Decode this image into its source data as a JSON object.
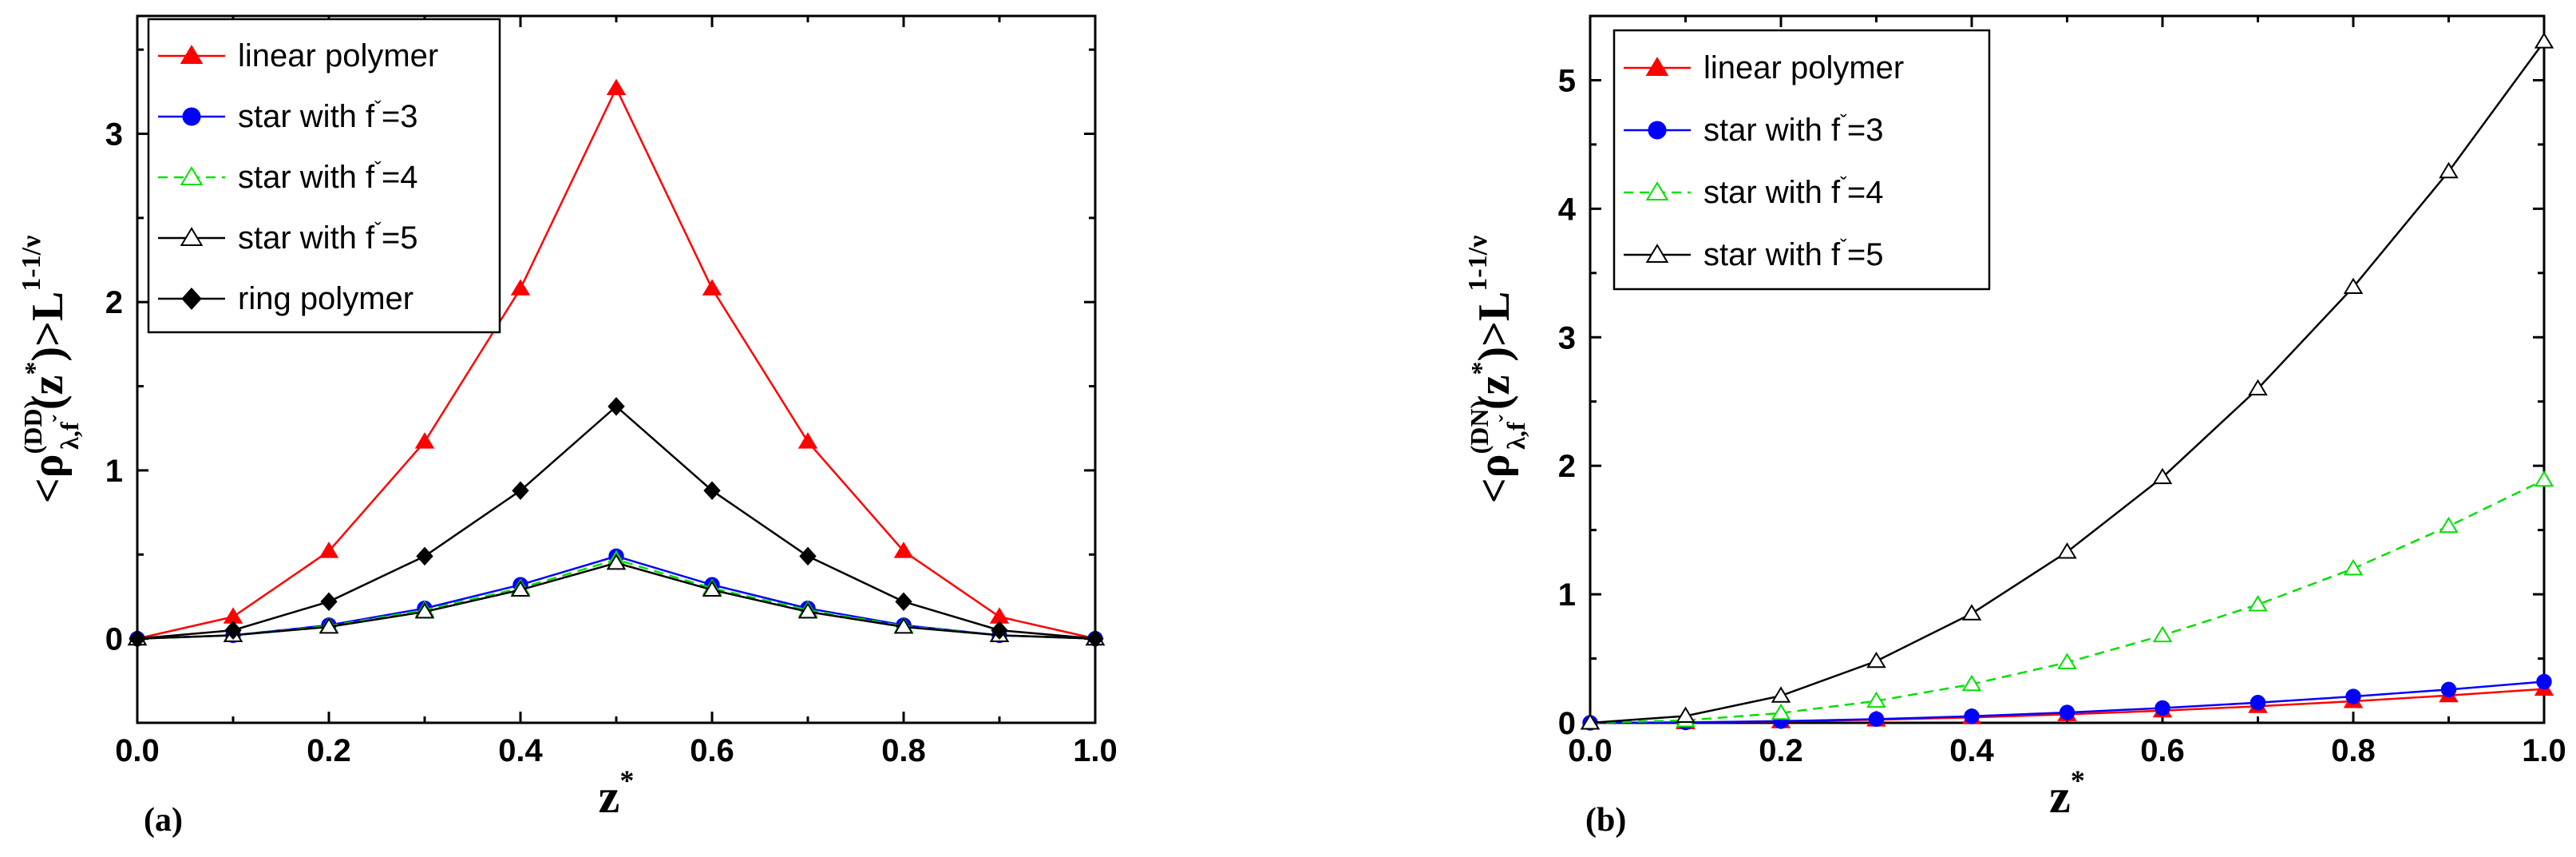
{
  "chart_data": [
    {
      "type": "line",
      "panel_label": "(a)",
      "xlabel": "z",
      "xlabel_sup": "*",
      "ylabel": {
        "lt": "<",
        "rho": "ρ",
        "sup": "(DD)",
        "sub": "λ,f",
        "sub_mark": "ˇ",
        "paren_open": "(z",
        "star": "*",
        "paren_close": ")>L",
        "exp": "1-1/ν"
      },
      "xlim": [
        0.0,
        1.0
      ],
      "ylim": [
        -0.5,
        3.7
      ],
      "x_ticks": [
        "0.0",
        "0.2",
        "0.4",
        "0.6",
        "0.8",
        "1.0"
      ],
      "y_ticks": [
        "0",
        "1",
        "2",
        "3"
      ],
      "x": [
        0.0,
        0.1,
        0.2,
        0.3,
        0.4,
        0.5,
        0.6,
        0.7,
        0.8,
        0.9,
        1.0
      ],
      "legend_position": "top-left",
      "series": [
        {
          "name": "linear polymer",
          "legend_main": "linear polymer",
          "legend_tail": "",
          "color": "#ff0000",
          "marker": "triangle-filled",
          "dash": "solid",
          "values": [
            0.0,
            0.13,
            0.52,
            1.17,
            2.08,
            3.27,
            2.08,
            1.17,
            0.52,
            0.13,
            0.0
          ]
        },
        {
          "name": "star with f=3",
          "legend_main": "star with f",
          "legend_tail": "=3",
          "color": "#0000ff",
          "marker": "circle-filled",
          "dash": "solid",
          "values": [
            0.0,
            0.02,
            0.08,
            0.18,
            0.32,
            0.49,
            0.32,
            0.18,
            0.08,
            0.02,
            0.0
          ]
        },
        {
          "name": "star with f=4",
          "legend_main": "star with f",
          "legend_tail": "=4",
          "color": "#00e000",
          "marker": "triangle-open",
          "dash": "dashed",
          "values": [
            0.0,
            0.02,
            0.075,
            0.17,
            0.3,
            0.47,
            0.3,
            0.17,
            0.075,
            0.02,
            0.0
          ]
        },
        {
          "name": "star with f=5",
          "legend_main": "star with f",
          "legend_tail": "=5",
          "color": "#000000",
          "marker": "triangle-open",
          "dash": "solid",
          "values": [
            0.0,
            0.02,
            0.07,
            0.16,
            0.29,
            0.45,
            0.29,
            0.16,
            0.07,
            0.02,
            0.0
          ]
        },
        {
          "name": "ring polymer",
          "legend_main": "ring polymer",
          "legend_tail": "",
          "color": "#000000",
          "marker": "diamond-filled",
          "dash": "solid",
          "values": [
            0.0,
            0.05,
            0.22,
            0.49,
            0.88,
            1.38,
            0.88,
            0.49,
            0.22,
            0.05,
            0.0
          ]
        }
      ]
    },
    {
      "type": "line",
      "panel_label": "(b)",
      "xlabel": "z",
      "xlabel_sup": "*",
      "ylabel": {
        "lt": "<",
        "rho": "ρ",
        "sup": "(DN)",
        "sub": "λ,f",
        "sub_mark": "ˇ",
        "paren_open": "(z",
        "star": "*",
        "paren_close": ")>L",
        "exp": "1-1/ν"
      },
      "xlim": [
        0.0,
        1.0
      ],
      "ylim": [
        0.0,
        5.5
      ],
      "x_ticks": [
        "0.0",
        "0.2",
        "0.4",
        "0.6",
        "0.8",
        "1.0"
      ],
      "y_ticks": [
        "0",
        "1",
        "2",
        "3",
        "4",
        "5"
      ],
      "x": [
        0.0,
        0.1,
        0.2,
        0.3,
        0.4,
        0.5,
        0.6,
        0.7,
        0.8,
        0.9,
        1.0
      ],
      "legend_position": "top-left",
      "series": [
        {
          "name": "linear polymer",
          "legend_main": "linear polymer",
          "legend_tail": "",
          "color": "#ff0000",
          "marker": "triangle-filled",
          "dash": "solid",
          "values": [
            0.0,
            0.003,
            0.011,
            0.024,
            0.042,
            0.066,
            0.095,
            0.129,
            0.168,
            0.213,
            0.263
          ]
        },
        {
          "name": "star with f=3",
          "legend_main": "star with f",
          "legend_tail": "=3",
          "color": "#0000ff",
          "marker": "circle-filled",
          "dash": "solid",
          "values": [
            0.0,
            0.003,
            0.013,
            0.029,
            0.051,
            0.08,
            0.115,
            0.157,
            0.205,
            0.259,
            0.32
          ]
        },
        {
          "name": "star with f=4",
          "legend_main": "star with f",
          "legend_tail": "=4",
          "color": "#00e000",
          "marker": "triangle-open",
          "dash": "dashed",
          "values": [
            0.0,
            0.019,
            0.076,
            0.17,
            0.3,
            0.47,
            0.68,
            0.92,
            1.2,
            1.53,
            1.89
          ]
        },
        {
          "name": "star with f=5",
          "legend_main": "star with f",
          "legend_tail": "=5",
          "color": "#000000",
          "marker": "triangle-open",
          "dash": "solid",
          "values": [
            0.0,
            0.053,
            0.21,
            0.48,
            0.85,
            1.33,
            1.91,
            2.6,
            3.39,
            4.29,
            5.3
          ]
        }
      ]
    }
  ]
}
